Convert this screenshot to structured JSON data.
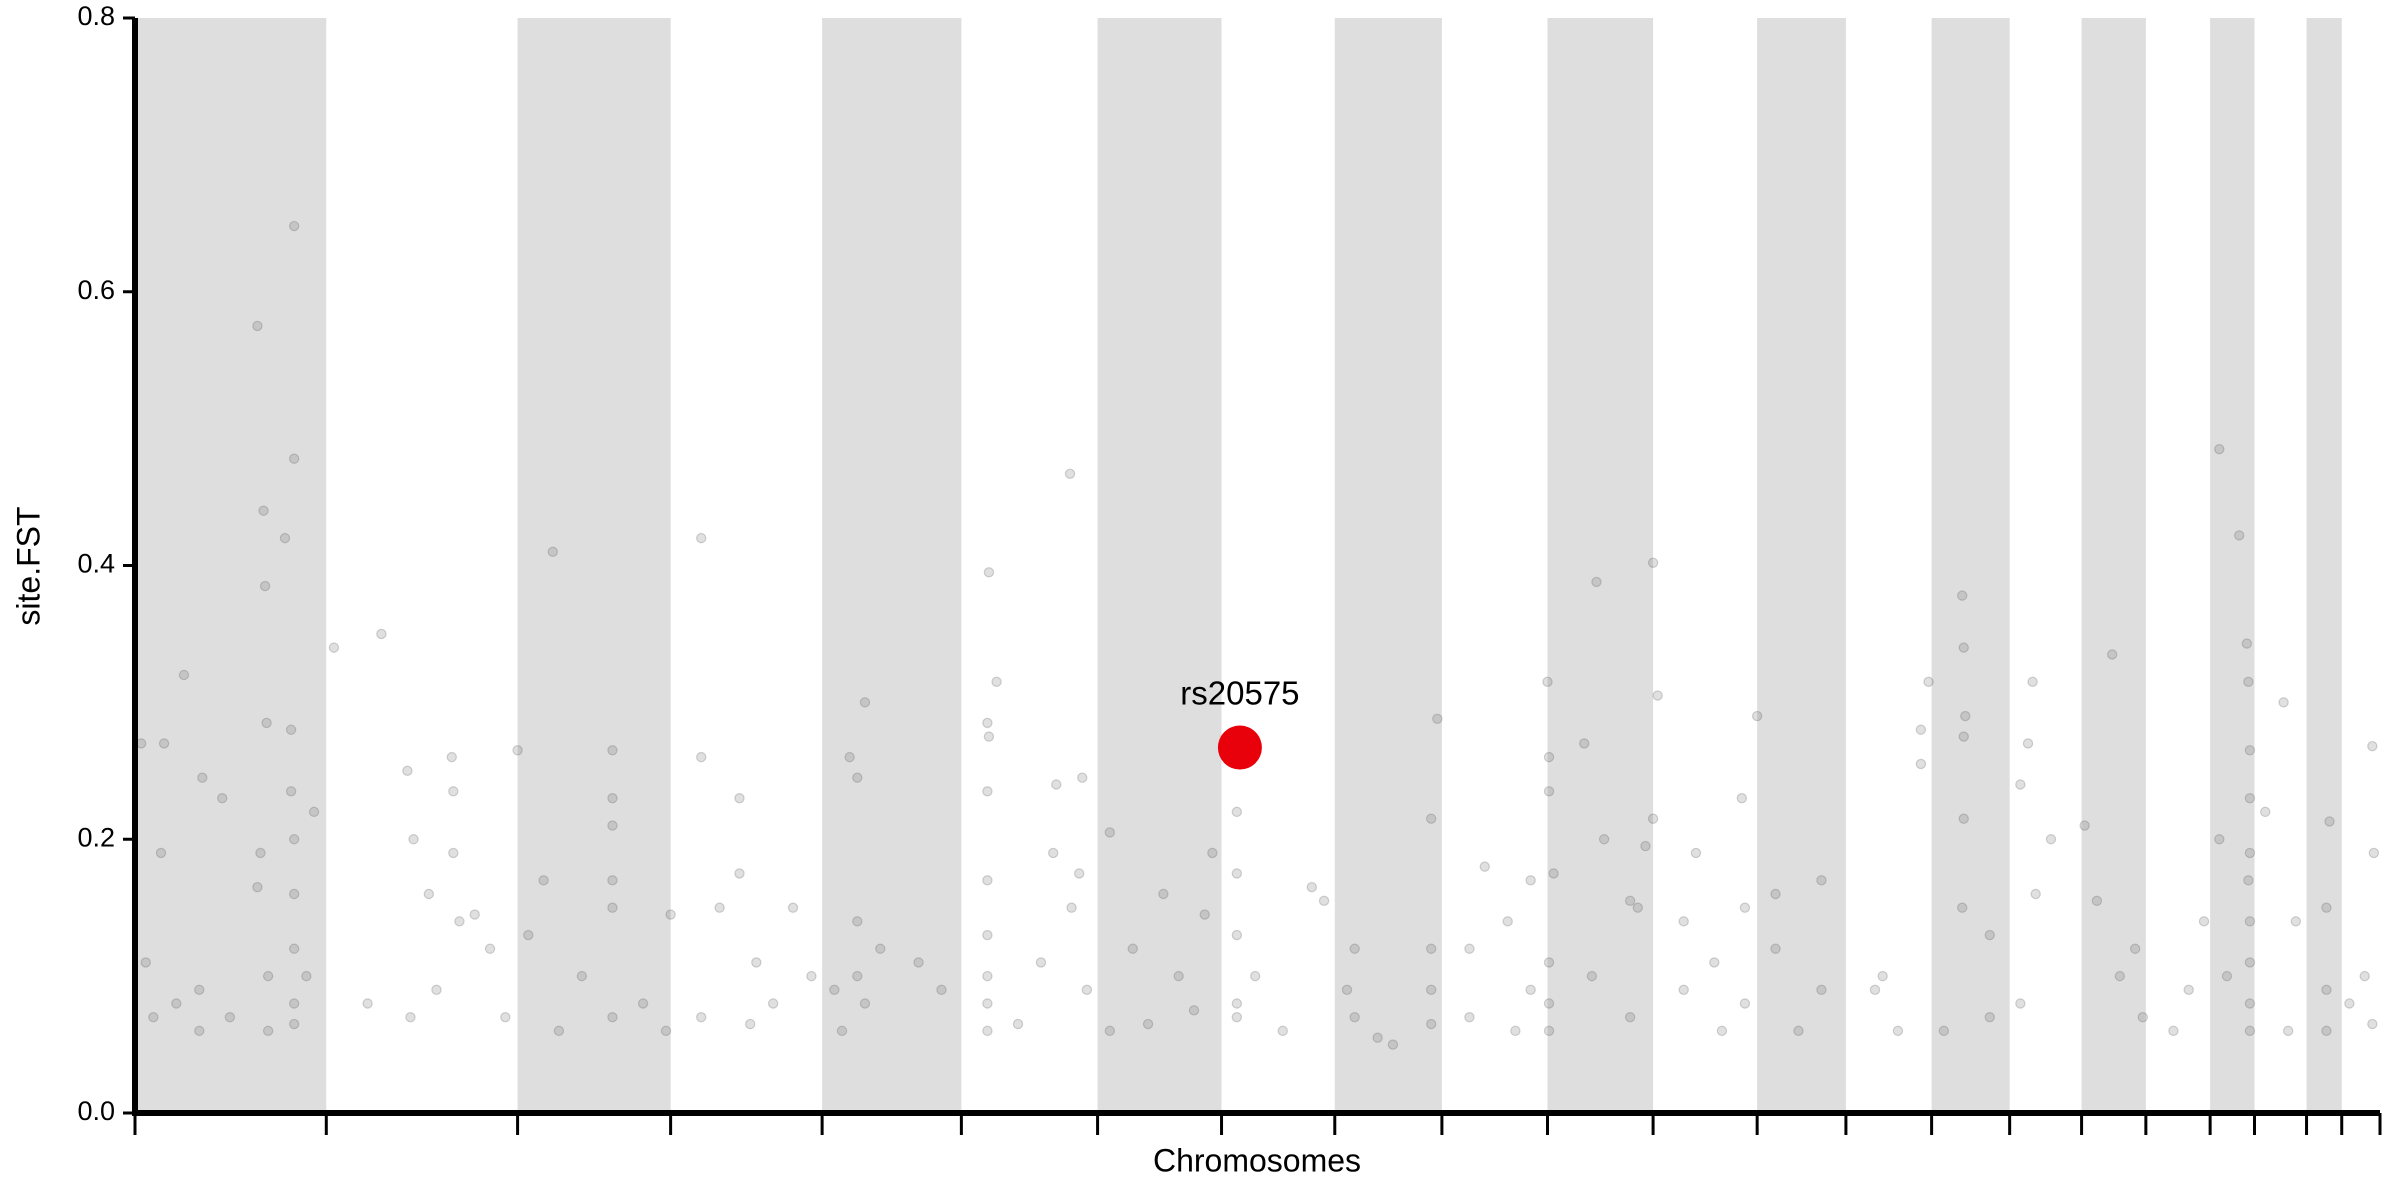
{
  "chart_data": {
    "type": "scatter",
    "y_label": "site.FST",
    "x_label": "Chromosomes",
    "xlim": [
      88,
      1555
    ],
    "ylim": [
      0,
      0.8
    ],
    "yticks": [
      {
        "value": 0,
        "label": "0.0"
      },
      0.2,
      0.4,
      0.6,
      0.8
    ],
    "chromosome_boundaries": [
      88,
      213,
      338,
      438,
      537,
      628,
      717,
      798,
      872,
      942,
      1011,
      1080,
      1148,
      1206,
      1262,
      1313,
      1360,
      1402,
      1444,
      1473,
      1507,
      1530,
      1555
    ],
    "band_color": "#dedede",
    "point_color": "#555555",
    "x": [
      92,
      105,
      107,
      120,
      132,
      145,
      168,
      172,
      173,
      174,
      186,
      190,
      192,
      192,
      190,
      192,
      192,
      192,
      192,
      192,
      170,
      168,
      175,
      175,
      130,
      130,
      100,
      95,
      115,
      150,
      205,
      200,
      218,
      249,
      266,
      270,
      268,
      295,
      296,
      296,
      300,
      310,
      320,
      280,
      285,
      330,
      240,
      338,
      361,
      355,
      345,
      365,
      400,
      400,
      400,
      400,
      400,
      400,
      380,
      420,
      438,
      435,
      458,
      458,
      458,
      483,
      483,
      494,
      470,
      518,
      505,
      490,
      530,
      555,
      560,
      565,
      560,
      560,
      565,
      550,
      575,
      600,
      615,
      545,
      646,
      651,
      645,
      646,
      645,
      645,
      645,
      645,
      645,
      645,
      665,
      690,
      699,
      707,
      705,
      700,
      688,
      680,
      710,
      725,
      760,
      740,
      770,
      725,
      787,
      792,
      780,
      750,
      808,
      808,
      808,
      808,
      808,
      838,
      857,
      865,
      820,
      880,
      885,
      885,
      935,
      939,
      935,
      935,
      935,
      910,
      900,
      960,
      970,
      985,
      1000,
      1000,
      960,
      990,
      1011,
      1012,
      1012,
      1015,
      1012,
      1012,
      1012,
      1035,
      1043,
      1048,
      1065,
      1070,
      1075,
      1080,
      1083,
      1080,
      1065,
      1040,
      1100,
      1108,
      1120,
      1138,
      1140,
      1140,
      1125,
      1100,
      1148,
      1160,
      1160,
      1190,
      1190,
      1175,
      1230,
      1255,
      1260,
      1255,
      1240,
      1225,
      1282,
      1283,
      1284,
      1283,
      1283,
      1282,
      1300,
      1300,
      1270,
      1328,
      1325,
      1320,
      1340,
      1330,
      1320,
      1362,
      1380,
      1385,
      1395,
      1370,
      1400,
      1420,
      1430,
      1440,
      1450,
      1463,
      1468,
      1469,
      1470,
      1470,
      1470,
      1469,
      1470,
      1470,
      1470,
      1470,
      1450,
      1455,
      1492,
      1500,
      1495,
      1480,
      1522,
      1520,
      1520,
      1520,
      1550,
      1551,
      1545,
      1550,
      1535
    ],
    "values": [
      0.27,
      0.19,
      0.27,
      0.32,
      0.245,
      0.23,
      0.575,
      0.44,
      0.385,
      0.285,
      0.42,
      0.28,
      0.648,
      0.478,
      0.235,
      0.2,
      0.16,
      0.12,
      0.08,
      0.065,
      0.19,
      0.165,
      0.1,
      0.06,
      0.09,
      0.06,
      0.07,
      0.11,
      0.08,
      0.07,
      0.22,
      0.1,
      0.34,
      0.35,
      0.25,
      0.2,
      0.07,
      0.26,
      0.235,
      0.19,
      0.14,
      0.145,
      0.12,
      0.16,
      0.09,
      0.07,
      0.08,
      0.265,
      0.41,
      0.17,
      0.13,
      0.06,
      0.265,
      0.23,
      0.21,
      0.17,
      0.15,
      0.07,
      0.1,
      0.08,
      0.145,
      0.06,
      0.42,
      0.26,
      0.07,
      0.23,
      0.175,
      0.11,
      0.15,
      0.15,
      0.08,
      0.065,
      0.1,
      0.26,
      0.245,
      0.3,
      0.14,
      0.1,
      0.08,
      0.06,
      0.12,
      0.11,
      0.09,
      0.09,
      0.395,
      0.315,
      0.285,
      0.275,
      0.235,
      0.17,
      0.13,
      0.1,
      0.08,
      0.06,
      0.065,
      0.24,
      0.467,
      0.245,
      0.175,
      0.15,
      0.19,
      0.11,
      0.09,
      0.205,
      0.16,
      0.12,
      0.1,
      0.06,
      0.145,
      0.19,
      0.075,
      0.065,
      0.22,
      0.175,
      0.13,
      0.08,
      0.07,
      0.06,
      0.165,
      0.155,
      0.1,
      0.09,
      0.12,
      0.07,
      0.215,
      0.288,
      0.12,
      0.09,
      0.065,
      0.05,
      0.055,
      0.07,
      0.18,
      0.14,
      0.17,
      0.09,
      0.12,
      0.06,
      0.315,
      0.26,
      0.235,
      0.175,
      0.11,
      0.08,
      0.06,
      0.27,
      0.388,
      0.2,
      0.155,
      0.15,
      0.195,
      0.402,
      0.305,
      0.215,
      0.07,
      0.1,
      0.14,
      0.19,
      0.11,
      0.23,
      0.15,
      0.08,
      0.06,
      0.09,
      0.29,
      0.16,
      0.12,
      0.17,
      0.09,
      0.06,
      0.1,
      0.28,
      0.315,
      0.255,
      0.06,
      0.09,
      0.378,
      0.34,
      0.29,
      0.275,
      0.215,
      0.15,
      0.13,
      0.07,
      0.06,
      0.315,
      0.27,
      0.24,
      0.2,
      0.16,
      0.08,
      0.21,
      0.335,
      0.1,
      0.12,
      0.155,
      0.07,
      0.06,
      0.09,
      0.14,
      0.485,
      0.422,
      0.343,
      0.315,
      0.265,
      0.23,
      0.19,
      0.17,
      0.14,
      0.11,
      0.08,
      0.06,
      0.2,
      0.1,
      0.3,
      0.14,
      0.06,
      0.22,
      0.213,
      0.15,
      0.09,
      0.06,
      0.268,
      0.19,
      0.1,
      0.065,
      0.08
    ],
    "highlight": {
      "label": "rs20575",
      "x": 810,
      "value": 0.267,
      "color": "#e8000b"
    }
  }
}
